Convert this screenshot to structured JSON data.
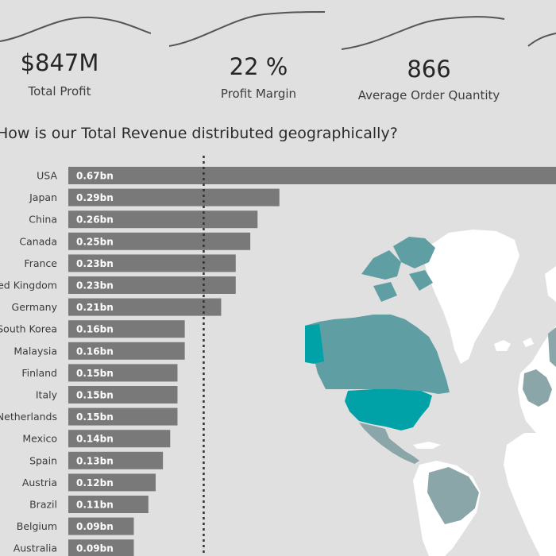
{
  "kpis": [
    {
      "value": "$847M",
      "label": "Total Profit"
    },
    {
      "value": "22 %",
      "label": "Profit Margin"
    },
    {
      "value": "866",
      "label": "Average Order Quantity"
    }
  ],
  "colors": {
    "bar": "#797979",
    "bar_label": "#ffffff",
    "map_land": "#ffffff",
    "map_highlight": "#00a2a8",
    "map_mid": "#5f9ea3",
    "map_light": "#8aa6a8",
    "background": "#e0e0e0",
    "sparkline": "#555555"
  },
  "chart_data": {
    "type": "bar",
    "orientation": "horizontal",
    "title": "How is our Total Revenue distributed geographically?",
    "categories": [
      "USA",
      "Japan",
      "China",
      "Canada",
      "France",
      "United Kingdom",
      "Germany",
      "South Korea",
      "Malaysia",
      "Finland",
      "Italy",
      "Netherlands",
      "Mexico",
      "Spain",
      "Austria",
      "Brazil",
      "Belgium",
      "Australia"
    ],
    "values": [
      0.67,
      0.29,
      0.26,
      0.25,
      0.23,
      0.23,
      0.21,
      0.16,
      0.16,
      0.15,
      0.15,
      0.15,
      0.14,
      0.13,
      0.12,
      0.11,
      0.09,
      0.09
    ],
    "data_labels": [
      "0.67bn",
      "0.29bn",
      "0.26bn",
      "0.25bn",
      "0.23bn",
      "0.23bn",
      "0.21bn",
      "0.16bn",
      "0.16bn",
      "0.15bn",
      "0.15bn",
      "0.15bn",
      "0.14bn",
      "0.13bn",
      "0.12bn",
      "0.11bn",
      "0.09bn",
      "0.09bn"
    ],
    "reference_line": {
      "value": 0.186,
      "style": "dotted"
    },
    "xlim": [
      0,
      0.67
    ],
    "grid": false,
    "legend": "none"
  }
}
